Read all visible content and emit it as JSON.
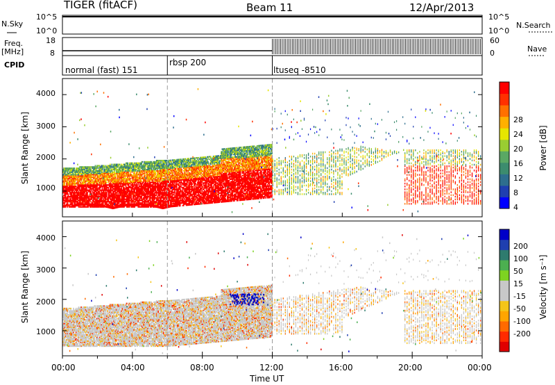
{
  "header": {
    "station": "TIGER (fitACF)",
    "beam": "Beam 11",
    "date": "12/Apr/2013"
  },
  "left_labels": {
    "nsky": "N.Sky",
    "freq_line1": "Freq.",
    "freq_line2": "[MHz]",
    "cpid": "CPID"
  },
  "right_labels": {
    "nsearch": "N.Search",
    "nave": "Nave"
  },
  "noise_panel": {
    "left_ticks": [
      "10^5",
      "10^0"
    ],
    "right_ticks": [
      "10^5",
      "10^0"
    ]
  },
  "freq_panel": {
    "left_ticks": [
      "18",
      "8"
    ],
    "right_ticks": [
      "60",
      "0"
    ]
  },
  "cpid_segments": [
    {
      "label": "normal (fast) 151",
      "start_hour": 0
    },
    {
      "label": "rbsp 200",
      "start_hour": 6
    },
    {
      "label": "ltuseq -8510",
      "start_hour": 12
    }
  ],
  "chart_data": [
    {
      "type": "heatmap",
      "name": "power",
      "ylabel": "Slant Range [km]",
      "yticks": [
        "1000",
        "2000",
        "3000",
        "4000"
      ],
      "ylim": [
        200,
        4500
      ],
      "xlim": [
        0,
        24
      ],
      "colorbar": {
        "label": "Power [dB]",
        "ticks": [
          "4",
          "8",
          "12",
          "16",
          "20",
          "24",
          "28"
        ],
        "colors": [
          "#0000ff",
          "#1f3fb0",
          "#2e6e8e",
          "#3c8c6e",
          "#5aa864",
          "#9acd32",
          "#e6e600",
          "#ffb000",
          "#ff7000",
          "#ff3000",
          "#ff0000"
        ]
      }
    },
    {
      "type": "heatmap",
      "name": "velocity",
      "ylabel": "Slant Range [km]",
      "yticks": [
        "1000",
        "2000",
        "3000",
        "4000"
      ],
      "ylim": [
        200,
        4500
      ],
      "xlim": [
        0,
        24
      ],
      "colorbar": {
        "label": "Velocity [m s⁻¹]",
        "ticks": [
          "200",
          "100",
          "50",
          "15",
          "-15",
          "-50",
          "-100",
          "-200"
        ],
        "colors": [
          "#0000c8",
          "#1f3fb0",
          "#2e7b6e",
          "#4caf50",
          "#7ed321",
          "#c8c8c8",
          "#c8c8c8",
          "#f5c518",
          "#ffa500",
          "#ff6a00",
          "#ff2a00",
          "#e00000"
        ]
      }
    }
  ],
  "xaxis": {
    "ticks": [
      "00:00",
      "04:00",
      "08:00",
      "12:00",
      "16:00",
      "20:00",
      "00:00"
    ],
    "label": "Time UT"
  }
}
